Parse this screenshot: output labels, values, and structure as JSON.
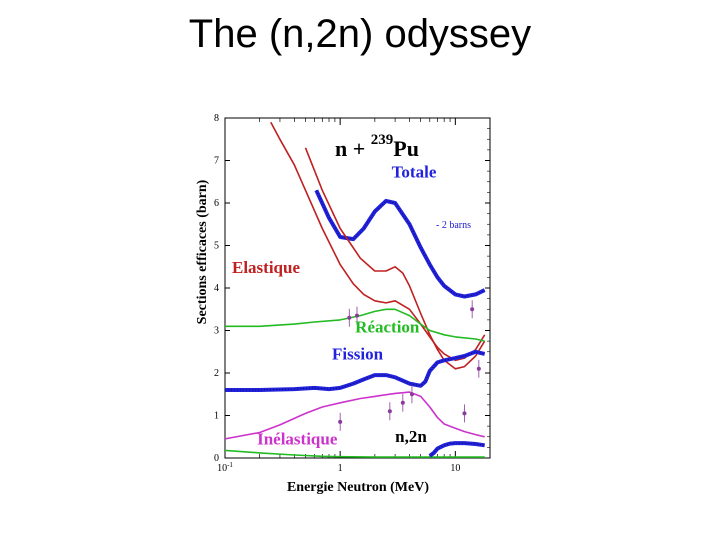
{
  "slide": {
    "title": "The (n,2n) odyssey"
  },
  "chart_data": {
    "type": "line",
    "xscale": "log",
    "xlim": [
      0.1,
      20
    ],
    "ylim": [
      0,
      8
    ],
    "grid": false,
    "xlabel": "Energie Neutron (MeV)",
    "ylabel": "Sections efficaces (barn)",
    "xticks": [
      {
        "base": "10",
        "exp": "-1",
        "value": 0.1
      },
      {
        "base": "1",
        "exp": "",
        "value": 1
      },
      {
        "base": "10",
        "exp": "",
        "value": 10
      }
    ],
    "yticks": [
      "0",
      "1",
      "2",
      "3",
      "4",
      "5",
      "6",
      "7",
      "8"
    ],
    "reaction_label": {
      "pre": "n + ",
      "mass": "239",
      "element": "Pu"
    },
    "offset_note": "- 2 barns",
    "colors": {
      "totale": "#2222dd",
      "elastique": "#c02020",
      "reaction": "#22bb22",
      "fission": "#2222dd",
      "inelastique": "#cc33cc",
      "n2n": "#2222dd",
      "experimental": "#8a3a9a"
    },
    "series": [
      {
        "name": "Totale",
        "color": "#2222dd",
        "x": [
          0.62,
          0.8,
          1,
          1.3,
          1.6,
          2,
          2.5,
          3,
          4,
          5,
          6,
          7,
          8,
          10,
          12,
          15,
          18
        ],
        "y": [
          6.3,
          5.65,
          5.2,
          5.15,
          5.4,
          5.8,
          6.05,
          6.0,
          5.5,
          4.95,
          4.55,
          4.25,
          4.05,
          3.85,
          3.8,
          3.85,
          3.95
        ]
      },
      {
        "name": "Elastique",
        "color": "#c02020",
        "x": [
          0.25,
          0.3,
          0.4,
          0.5,
          0.7,
          1,
          1.3,
          1.6,
          2,
          2.5,
          3,
          4,
          5,
          6,
          7,
          8,
          10,
          12,
          15,
          18
        ],
        "y": [
          7.9,
          7.5,
          6.9,
          6.3,
          5.4,
          4.55,
          4.1,
          3.85,
          3.7,
          3.65,
          3.7,
          3.5,
          3.15,
          2.85,
          2.6,
          2.45,
          2.3,
          2.35,
          2.55,
          2.9
        ]
      },
      {
        "name": "",
        "color": "#c02020",
        "x": [
          0.5,
          0.7,
          1,
          1.5,
          2,
          2.5,
          3,
          3.5,
          4,
          5,
          6,
          7,
          8,
          10,
          12,
          15,
          18
        ],
        "y": [
          7.3,
          6.3,
          5.4,
          4.7,
          4.4,
          4.4,
          4.5,
          4.35,
          4.05,
          3.4,
          2.9,
          2.55,
          2.3,
          2.1,
          2.15,
          2.4,
          2.75
        ]
      },
      {
        "name": "Réaction",
        "color": "#22bb22",
        "x": [
          0.1,
          0.2,
          0.4,
          0.6,
          1,
          1.5,
          2,
          2.5,
          3,
          4,
          5,
          6,
          8,
          10,
          15,
          18
        ],
        "y": [
          3.1,
          3.1,
          3.15,
          3.2,
          3.25,
          3.35,
          3.45,
          3.5,
          3.5,
          3.35,
          3.15,
          3.0,
          2.9,
          2.85,
          2.8,
          2.75
        ]
      },
      {
        "name": "Fission",
        "color": "#2222dd",
        "x": [
          0.1,
          0.2,
          0.4,
          0.6,
          0.8,
          1,
          1.3,
          1.6,
          2,
          2.5,
          3,
          4,
          5,
          5.5,
          6,
          7,
          8,
          10,
          12,
          15,
          18
        ],
        "y": [
          1.6,
          1.6,
          1.62,
          1.65,
          1.62,
          1.65,
          1.75,
          1.85,
          1.95,
          1.95,
          1.9,
          1.75,
          1.7,
          1.8,
          2.05,
          2.25,
          2.3,
          2.35,
          2.4,
          2.5,
          2.45
        ]
      },
      {
        "name": "Inélastique",
        "color": "#cc33cc",
        "x": [
          0.1,
          0.2,
          0.3,
          0.5,
          0.7,
          1,
          1.5,
          2,
          3,
          4,
          5,
          6,
          7,
          8,
          10,
          12,
          15,
          18
        ],
        "y": [
          0.45,
          0.6,
          0.78,
          1.05,
          1.2,
          1.3,
          1.4,
          1.45,
          1.52,
          1.55,
          1.45,
          1.2,
          0.95,
          0.8,
          0.7,
          0.62,
          0.55,
          0.5
        ]
      },
      {
        "name": "",
        "color": "#22bb22",
        "x": [
          0.1,
          0.2,
          0.4,
          0.7,
          1,
          2,
          4,
          8,
          18
        ],
        "y": [
          0.18,
          0.12,
          0.07,
          0.04,
          0.03,
          0.02,
          0.02,
          0.02,
          0.02
        ]
      },
      {
        "name": "n,2n",
        "color": "#2222dd",
        "x": [
          6,
          6.5,
          7,
          8,
          9,
          10,
          12,
          15,
          18
        ],
        "y": [
          0.05,
          0.12,
          0.22,
          0.3,
          0.34,
          0.35,
          0.35,
          0.33,
          0.3
        ]
      }
    ],
    "labels": [
      {
        "series": "Totale",
        "text": "Totale",
        "color": "#2222dd",
        "x": 2.8,
        "y": 6.6
      },
      {
        "series": "Elastique",
        "text": "Elastique",
        "color": "#c02020",
        "x": 0.115,
        "y": 4.35
      },
      {
        "series": "Réaction",
        "text": "Réaction",
        "color": "#22bb22",
        "x": 1.35,
        "y": 2.95
      },
      {
        "series": "Fission",
        "text": "Fission",
        "color": "#2222dd",
        "x": 0.85,
        "y": 2.32
      },
      {
        "series": "Inélastique",
        "text": "Inélastique",
        "color": "#cc33cc",
        "x": 0.19,
        "y": 0.32
      },
      {
        "series": "n,2n",
        "text": "n,2n",
        "color": "#000000",
        "x": 3.0,
        "y": 0.38
      }
    ],
    "experimental_points": [
      {
        "x": 1.2,
        "y": 3.3
      },
      {
        "x": 1.4,
        "y": 3.35
      },
      {
        "x": 2.7,
        "y": 1.1
      },
      {
        "x": 3.5,
        "y": 1.3
      },
      {
        "x": 4.2,
        "y": 1.5
      },
      {
        "x": 14,
        "y": 3.5
      },
      {
        "x": 16,
        "y": 2.1
      },
      {
        "x": 12,
        "y": 1.05
      },
      {
        "x": 1.0,
        "y": 0.85
      }
    ]
  }
}
